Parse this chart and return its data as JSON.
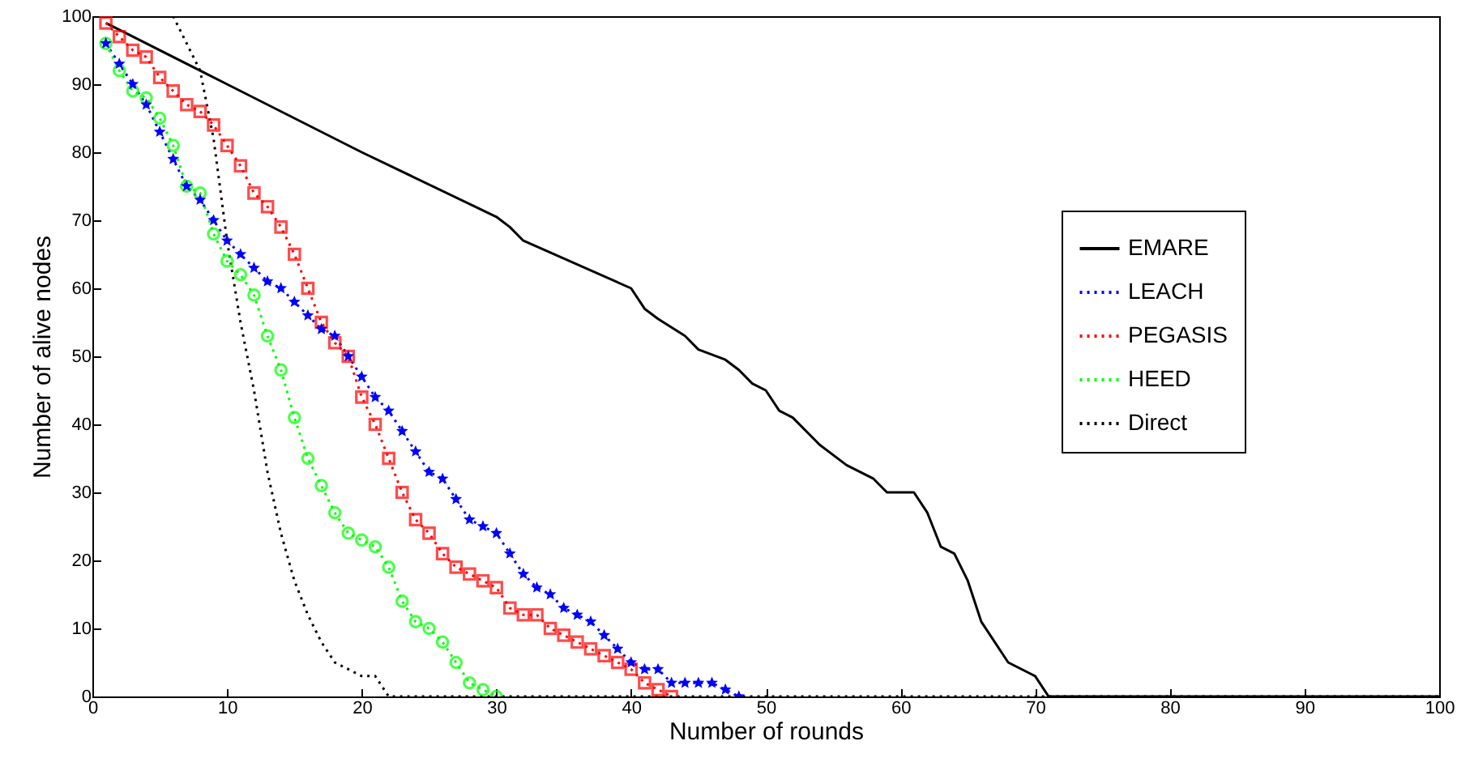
{
  "chart_data": {
    "type": "line",
    "xlabel": "Number of rounds",
    "ylabel": "Number of alive nodes",
    "xlim": [
      0,
      100
    ],
    "ylim": [
      0,
      100
    ],
    "xticks": [
      0,
      10,
      20,
      30,
      40,
      50,
      60,
      70,
      80,
      90,
      100
    ],
    "yticks": [
      0,
      10,
      20,
      30,
      40,
      50,
      60,
      70,
      80,
      90,
      100
    ],
    "grid": false,
    "legend": "top right",
    "series": [
      {
        "name": "EMARE",
        "color": "#000000",
        "marker": "none",
        "line_style": "solid",
        "x": [
          1,
          10,
          20,
          30,
          31,
          32,
          40,
          41,
          42,
          44,
          45,
          47,
          48,
          49,
          50,
          51,
          52,
          54,
          56,
          58,
          59,
          61,
          62,
          63,
          64,
          65,
          66,
          68,
          70,
          71,
          100
        ],
        "values": [
          99,
          90,
          80,
          70.5,
          69,
          67,
          60,
          57,
          55.5,
          53,
          51,
          49.5,
          48,
          46,
          45,
          42,
          41,
          37,
          34,
          32,
          30,
          30,
          27,
          22,
          21,
          17,
          11,
          5,
          3,
          0,
          0
        ]
      },
      {
        "name": "LEACH",
        "color": "#0000ff",
        "marker": "star",
        "line_style": "dotted",
        "x": [
          1,
          2,
          3,
          4,
          5,
          6,
          7,
          8,
          9,
          10,
          11,
          12,
          13,
          14,
          15,
          16,
          17,
          18,
          19,
          20,
          21,
          22,
          23,
          24,
          25,
          26,
          27,
          28,
          29,
          30,
          31,
          32,
          33,
          34,
          35,
          36,
          37,
          38,
          39,
          40,
          41,
          42,
          43,
          44,
          45,
          46,
          47,
          48
        ],
        "values": [
          96,
          93,
          90,
          87,
          83,
          79,
          75,
          73,
          70,
          67,
          65,
          63,
          61,
          60,
          58,
          56,
          54,
          53,
          50,
          47,
          44,
          42,
          39,
          36,
          33,
          32,
          29,
          26,
          25,
          24,
          21,
          18,
          16,
          15,
          13,
          12,
          11,
          9,
          7,
          5,
          4,
          4,
          2,
          2,
          2,
          2,
          1,
          0
        ]
      },
      {
        "name": "PEGASIS",
        "color": "#ff0000",
        "marker": "square",
        "line_style": "dotted",
        "x": [
          1,
          2,
          3,
          4,
          5,
          6,
          7,
          8,
          9,
          10,
          11,
          12,
          13,
          14,
          15,
          16,
          17,
          18,
          19,
          20,
          21,
          22,
          23,
          24,
          25,
          26,
          27,
          28,
          29,
          30,
          31,
          32,
          33,
          34,
          35,
          36,
          37,
          38,
          39,
          40,
          41,
          42,
          43
        ],
        "values": [
          99,
          97,
          95,
          94,
          91,
          89,
          87,
          86,
          84,
          81,
          78,
          74,
          72,
          69,
          65,
          60,
          55,
          52,
          50,
          44,
          40,
          35,
          30,
          26,
          24,
          21,
          19,
          18,
          17,
          16,
          13,
          12,
          12,
          10,
          9,
          8,
          7,
          6,
          5,
          4,
          2,
          1,
          0
        ]
      },
      {
        "name": "HEED",
        "color": "#00ff00",
        "marker": "circle",
        "line_style": "dotted",
        "x": [
          1,
          2,
          3,
          4,
          5,
          6,
          7,
          8,
          9,
          10,
          11,
          12,
          13,
          14,
          15,
          16,
          17,
          18,
          19,
          20,
          21,
          22,
          23,
          24,
          25,
          26,
          27,
          28,
          29,
          30
        ],
        "values": [
          96,
          92,
          89,
          88,
          85,
          81,
          75,
          74,
          68,
          64,
          62,
          59,
          53,
          48,
          41,
          35,
          31,
          27,
          24,
          23,
          22,
          19,
          14,
          11,
          10,
          8,
          5,
          2,
          1,
          0
        ]
      },
      {
        "name": "Direct",
        "color": "#000000",
        "marker": "none",
        "line_style": "dotted",
        "x": [
          6,
          8,
          9,
          10,
          11,
          12,
          13,
          14,
          15,
          16,
          17,
          18,
          19,
          20,
          21,
          22,
          100
        ],
        "values": [
          100,
          92,
          82,
          67,
          55,
          45,
          33,
          24,
          17,
          12,
          8,
          5,
          4,
          3,
          3,
          0,
          0
        ]
      }
    ]
  }
}
